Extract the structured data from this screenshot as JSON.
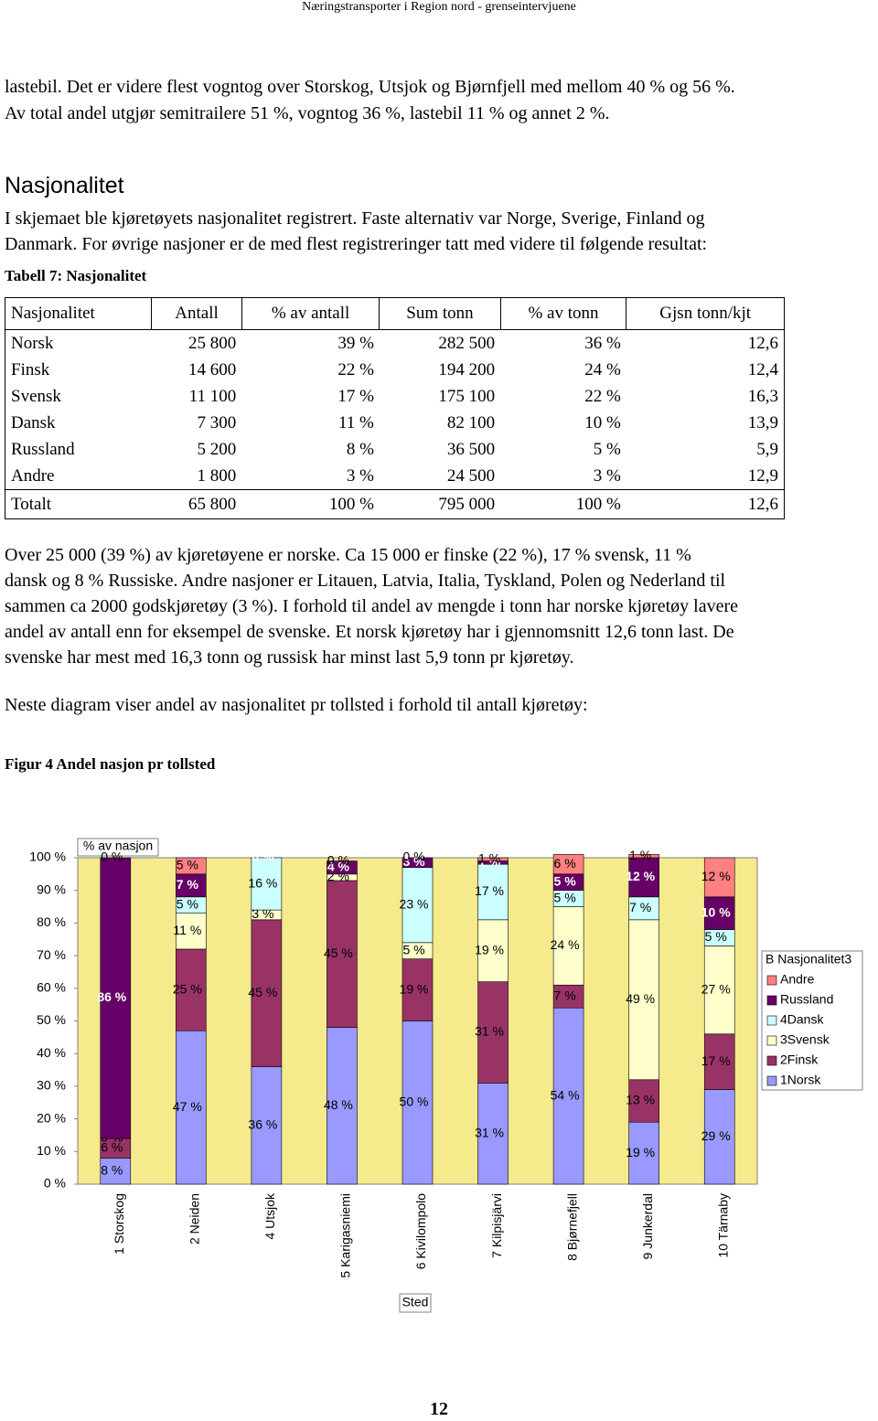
{
  "header": "Næringstransporter i Region nord - grenseintervjuene",
  "intro": [
    "lastebil. Det er videre flest vogntog over Storskog, Utsjok og Bjørnfjell med mellom 40 % og 56 %.",
    "Av total andel utgjør semitrailere 51 %, vogntog 36 %, lastebil 11 % og annet 2 %."
  ],
  "section_title": "Nasjonalitet",
  "section_text": [
    "I skjemaet ble kjøretøyets nasjonalitet registrert. Faste alternativ var Norge, Sverige, Finland og",
    "Danmark. For øvrige nasjoner er de med flest registreringer tatt med videre til følgende resultat:"
  ],
  "table_caption": "Tabell 7: Nasjonalitet",
  "table": {
    "columns": [
      "Nasjonalitet",
      "Antall",
      "% av antall",
      "Sum tonn",
      "% av tonn",
      "Gjsn tonn/kjt"
    ],
    "rows": [
      [
        "Norsk",
        "25 800",
        "39 %",
        "282 500",
        "36 %",
        "12,6"
      ],
      [
        "Finsk",
        "14 600",
        "22 %",
        "194 200",
        "24 %",
        "12,4"
      ],
      [
        "Svensk",
        "11 100",
        "17 %",
        "175 100",
        "22 %",
        "16,3"
      ],
      [
        "Dansk",
        "7 300",
        "11 %",
        "82 100",
        "10 %",
        "13,9"
      ],
      [
        "Russland",
        "5 200",
        "8 %",
        "36 500",
        "5 %",
        "5,9"
      ],
      [
        "Andre",
        "1 800",
        "3 %",
        "24 500",
        "3 %",
        "12,9"
      ],
      [
        "Totalt",
        "65 800",
        "100 %",
        "795 000",
        "100 %",
        "12,6"
      ]
    ]
  },
  "analysis": [
    "Over 25 000 (39 %) av kjøretøyene er norske. Ca 15 000 er finske (22 %), 17 % svensk, 11 %",
    "dansk og 8 % Russiske. Andre nasjoner er Litauen, Latvia, Italia, Tyskland, Polen og Nederland til",
    "sammen ca 2000 godskjøretøy (3 %). I forhold til andel av mengde i tonn har norske kjøretøy lavere",
    "andel av antall enn for eksempel de svenske. Et norsk kjøretøy har i gjennomsnitt 12,6 tonn last. De",
    "svenske har mest med 16,3 tonn og russisk har minst last 5,9 tonn pr kjøretøy."
  ],
  "chart_intro": "Neste diagram viser andel av nasjonalitet pr tollsted i forhold til antall kjøretøy:",
  "figure_caption": "Figur 4  Andel nasjon pr tollsted",
  "chart_data": {
    "type": "stacked_bar",
    "y_label": "% av nasjon",
    "x_label": "Sted",
    "legend_title": "B Nasjonalitet3",
    "legend": "right",
    "categories": [
      "1 Storskog",
      "2 Neiden",
      "4 Utsjok",
      "5 Karigasniemi",
      "6 Kivilompolo",
      "7 Kilpisjärvi",
      "8 Bjørnefjell",
      "9 Junkerdal",
      "10 Tärnaby"
    ],
    "ylim": [
      0,
      100
    ],
    "yticks": [
      {
        "value": 0,
        "label": "0 %"
      },
      {
        "value": 10,
        "label": "10 %"
      },
      {
        "value": 20,
        "label": "20 %"
      },
      {
        "value": 30,
        "label": "30 %"
      },
      {
        "value": 40,
        "label": "40 %"
      },
      {
        "value": 50,
        "label": "50 %"
      },
      {
        "value": 60,
        "label": "60 %"
      },
      {
        "value": 70,
        "label": "70 %"
      },
      {
        "value": 80,
        "label": "80 %"
      },
      {
        "value": 90,
        "label": "90 %"
      },
      {
        "value": 100,
        "label": "100 %"
      }
    ],
    "series": [
      {
        "name": "1Norsk",
        "color": "#9999ff",
        "values": [
          8,
          47,
          36,
          48,
          50,
          31,
          54,
          19,
          29
        ],
        "value_labels": [
          "8 %",
          "47 %",
          "36 %",
          "48 %",
          "50 %",
          "31 %",
          "54 %",
          "19 %",
          "29 %"
        ]
      },
      {
        "name": "2Finsk",
        "color": "#993366",
        "values": [
          6,
          25,
          45,
          45,
          19,
          31,
          7,
          13,
          17
        ],
        "value_labels": [
          "6 %",
          "25 %",
          "45 %",
          "45 %",
          "19 %",
          "31 %",
          "7 %",
          "13 %",
          "17 %"
        ]
      },
      {
        "name": "3Svensk",
        "color": "#ffffcc",
        "values": [
          0,
          11,
          3,
          2,
          5,
          19,
          24,
          49,
          27
        ],
        "value_labels": [
          "0 %",
          "11 %",
          "3 %",
          "2 %",
          "5 %",
          "19 %",
          "24 %",
          "49 %",
          "27 %"
        ]
      },
      {
        "name": "4Dansk",
        "color": "#ccffff",
        "values": [
          0,
          5,
          16,
          0,
          23,
          17,
          5,
          7,
          5
        ],
        "value_labels": [
          null,
          "5 %",
          "16 %",
          null,
          "23 %",
          "17 %",
          "5 %",
          "7 %",
          "5 %"
        ]
      },
      {
        "name": "Russland",
        "color": "#660066",
        "values": [
          86,
          7,
          0,
          4,
          3,
          1,
          5,
          12,
          10
        ],
        "value_labels": [
          "86 %",
          "7 %",
          "0 %",
          "4 %",
          "3 %",
          "1 %",
          "5 %",
          "12 %",
          "10 %"
        ]
      },
      {
        "name": "Andre",
        "color": "#ff8080",
        "values": [
          0,
          5,
          0,
          0,
          0,
          1,
          6,
          1,
          12
        ],
        "value_labels": [
          "0 %",
          "5 %",
          null,
          "0 %",
          "0 %",
          "1 %",
          "6 %",
          "1 %",
          "12 %"
        ]
      }
    ]
  },
  "page_number": "12"
}
